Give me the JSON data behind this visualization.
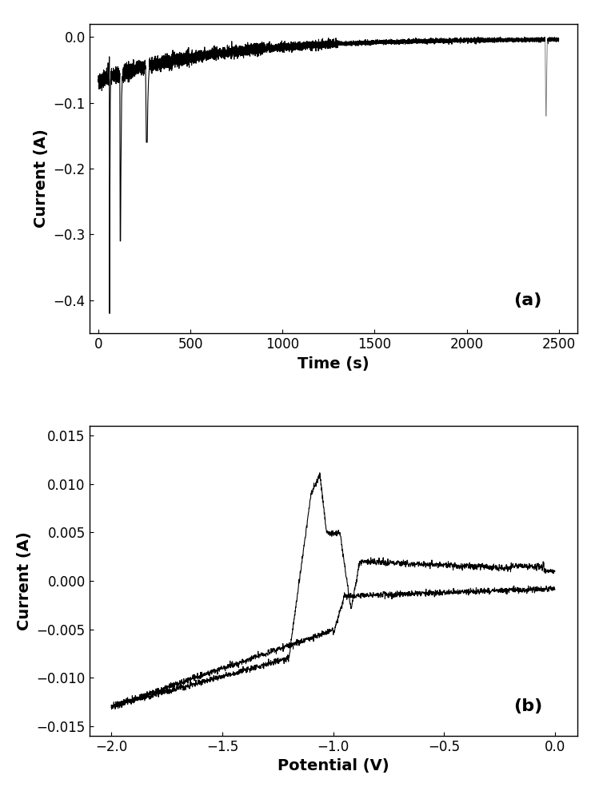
{
  "panel_a": {
    "xlabel": "Time (s)",
    "ylabel": "Current (A)",
    "label": "(a)",
    "xlim": [
      -50,
      2600
    ],
    "ylim": [
      -0.45,
      0.02
    ],
    "xticks": [
      0,
      500,
      1000,
      1500,
      2000,
      2500
    ],
    "yticks": [
      0.0,
      -0.1,
      -0.2,
      -0.3,
      -0.4
    ]
  },
  "panel_b": {
    "xlabel": "Potential (V)",
    "ylabel": "Current (A)",
    "label": "(b)",
    "xlim": [
      -2.1,
      0.1
    ],
    "ylim": [
      -0.016,
      0.016
    ],
    "xticks": [
      -2.0,
      -1.5,
      -1.0,
      -0.5,
      0.0
    ],
    "yticks": [
      -0.015,
      -0.01,
      -0.005,
      0.0,
      0.005,
      0.01,
      0.015
    ]
  },
  "line_color": "#000000",
  "spike_color": "#808080",
  "background_color": "#ffffff",
  "font_size_label": 14,
  "font_size_tick": 12,
  "font_size_panel_label": 16
}
